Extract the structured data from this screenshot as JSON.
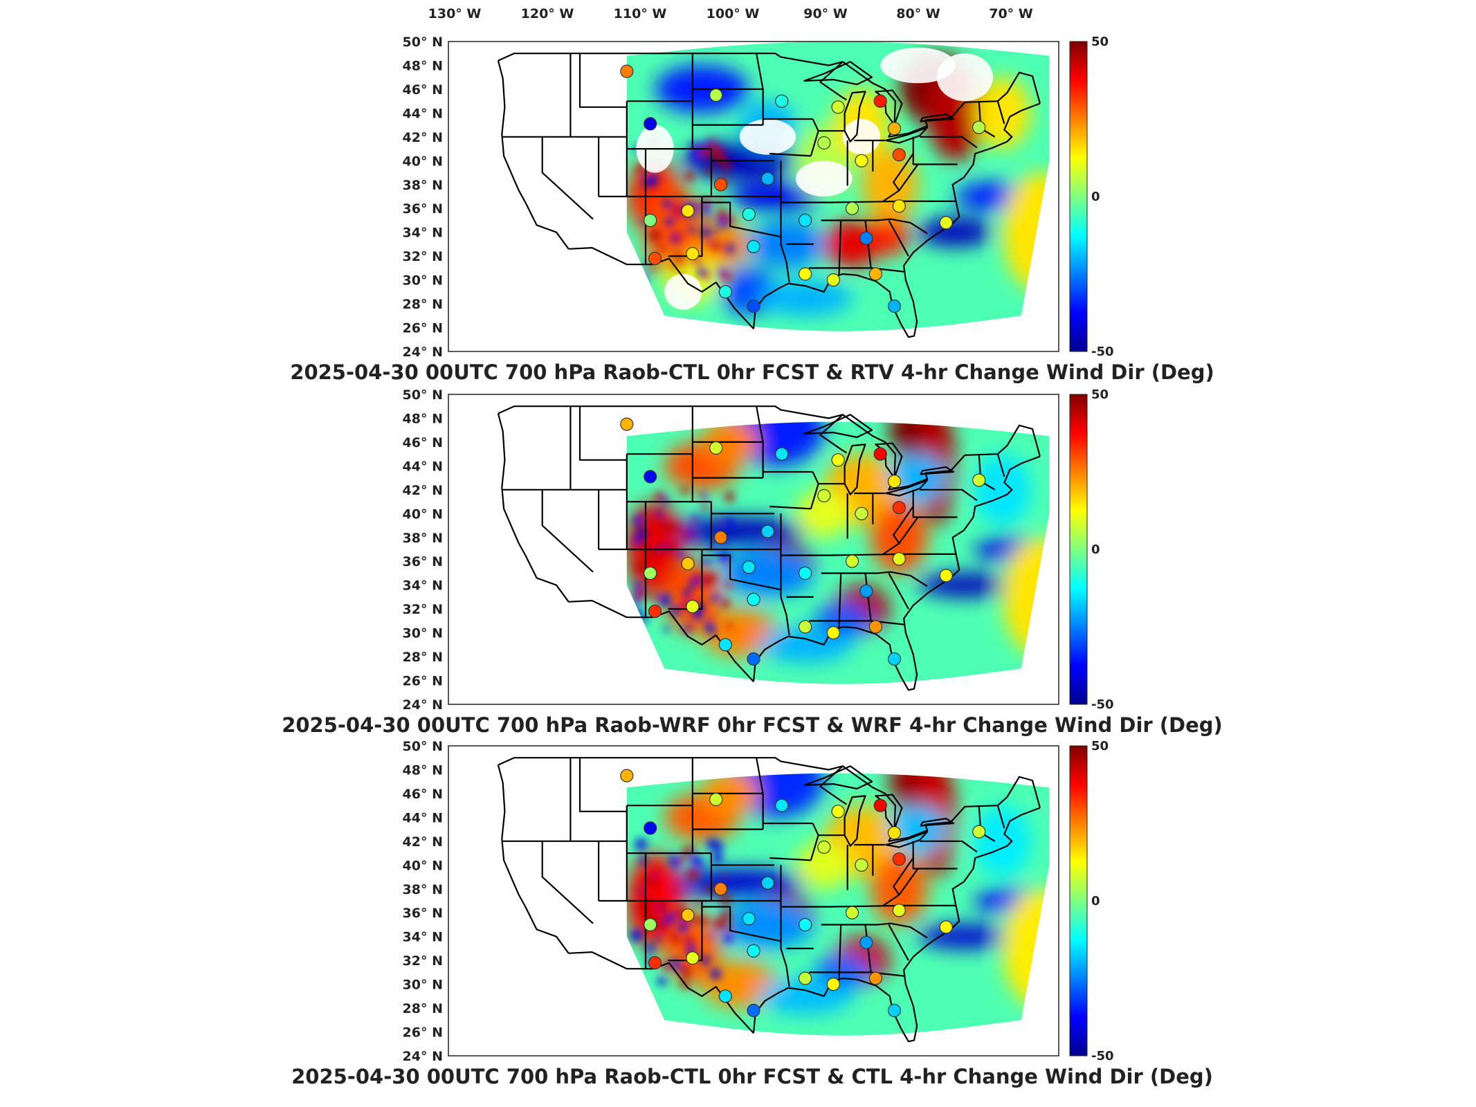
{
  "figure": {
    "top_axis_labels": [
      "130° W",
      "120° W",
      "110° W",
      "100° W",
      "90° W",
      "80° W",
      "70° W"
    ],
    "lat_labels": [
      "50° N",
      "48° N",
      "46° N",
      "44° N",
      "42° N",
      "40° N",
      "38° N",
      "36° N",
      "34° N",
      "32° N",
      "30° N",
      "28° N",
      "26° N",
      "24° N"
    ],
    "colorbar_ticks": [
      "50",
      "0",
      "-50"
    ],
    "colormap": [
      "#00008f",
      "#0000ff",
      "#0080ff",
      "#00ffff",
      "#80ff80",
      "#ffff00",
      "#ff8000",
      "#ff0000",
      "#800000"
    ],
    "panels": [
      {
        "title": "2025-04-30 00UTC 700 hPa Raob-CTL 0hr FCST & RTV 4-hr Change Wind Dir (Deg)",
        "field": "rtv"
      },
      {
        "title": "2025-04-30 00UTC 700 hPa Raob-WRF 0hr FCST & WRF 4-hr Change Wind Dir (Deg)",
        "field": "wrf"
      },
      {
        "title": "2025-04-30 00UTC 700 hPa Raob-CTL 0hr FCST & CTL 4-hr Change Wind Dir (Deg)",
        "field": "ctl"
      }
    ]
  },
  "chart_data": {
    "type": "heatmap",
    "projection": "map of contiguous United States with state boundaries",
    "lon_range": [
      -130,
      -65
    ],
    "lat_range": [
      24,
      50
    ],
    "color_range": [
      -50,
      50
    ],
    "units": "Deg",
    "raob_stations": [
      {
        "lon": -111.0,
        "lat": 47.5,
        "value": 25
      },
      {
        "lon": -108.5,
        "lat": 43.1,
        "value": -40
      },
      {
        "lon": -101.5,
        "lat": 45.5,
        "value": 5
      },
      {
        "lon": -94.5,
        "lat": 45.0,
        "value": -10
      },
      {
        "lon": -88.5,
        "lat": 44.5,
        "value": 8
      },
      {
        "lon": -84.0,
        "lat": 45.0,
        "value": 35
      },
      {
        "lon": -82.5,
        "lat": 42.7,
        "value": 20
      },
      {
        "lon": -73.5,
        "lat": 42.8,
        "value": 5
      },
      {
        "lon": -90.0,
        "lat": 41.5,
        "value": 5
      },
      {
        "lon": -86.0,
        "lat": 40.0,
        "value": 12
      },
      {
        "lon": -82.0,
        "lat": 40.5,
        "value": 30
      },
      {
        "lon": -96.0,
        "lat": 38.5,
        "value": -20
      },
      {
        "lon": -101.0,
        "lat": 38.0,
        "value": 30
      },
      {
        "lon": -104.5,
        "lat": 35.8,
        "value": 15
      },
      {
        "lon": -108.5,
        "lat": 35.0,
        "value": 0
      },
      {
        "lon": -98.0,
        "lat": 35.5,
        "value": -10
      },
      {
        "lon": -92.0,
        "lat": 35.0,
        "value": -15
      },
      {
        "lon": -87.0,
        "lat": 36.0,
        "value": 5
      },
      {
        "lon": -82.0,
        "lat": 36.2,
        "value": 15
      },
      {
        "lon": -77.0,
        "lat": 34.8,
        "value": 10
      },
      {
        "lon": -85.5,
        "lat": 33.5,
        "value": -25
      },
      {
        "lon": -104.0,
        "lat": 32.2,
        "value": 15
      },
      {
        "lon": -108.0,
        "lat": 31.8,
        "value": 30
      },
      {
        "lon": -97.5,
        "lat": 32.8,
        "value": -15
      },
      {
        "lon": -92.0,
        "lat": 30.5,
        "value": 12
      },
      {
        "lon": -89.0,
        "lat": 30.0,
        "value": 10
      },
      {
        "lon": -84.5,
        "lat": 30.5,
        "value": 20
      },
      {
        "lon": -100.5,
        "lat": 29.0,
        "value": -10
      },
      {
        "lon": -97.5,
        "lat": 27.8,
        "value": -30
      },
      {
        "lon": -82.5,
        "lat": 27.8,
        "value": -20
      }
    ]
  }
}
